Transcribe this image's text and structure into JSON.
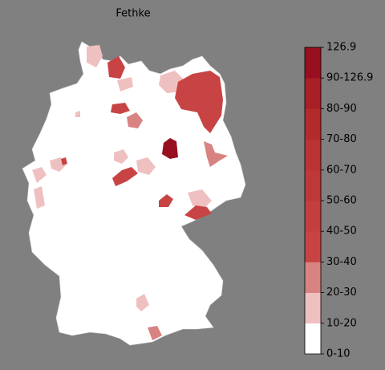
{
  "title": "Fethke",
  "legend": {
    "labels": [
      "0-10",
      "10-20",
      "20-30",
      "30-40",
      "40-50",
      "50-60",
      "60-70",
      "70-80",
      "80-90",
      "90-126.9",
      "126.9"
    ],
    "colors": [
      "#ffffff",
      "#efc0c0",
      "#d98282",
      "#c84444",
      "#c43e3e",
      "#bf3838",
      "#ba3232",
      "#b32a2a",
      "#a81f26",
      "#980f1f"
    ]
  }
}
